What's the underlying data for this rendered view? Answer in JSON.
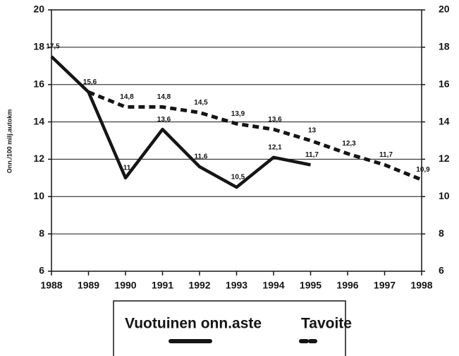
{
  "chart_data": {
    "type": "line",
    "y_label": "Onn./100 milj.autokm",
    "categories": [
      "1988",
      "1989",
      "1990",
      "1991",
      "1992",
      "1993",
      "1994",
      "1995",
      "1996",
      "1997",
      "1998"
    ],
    "series": [
      {
        "name": "Vuotuinen onn.aste",
        "color": "#151515",
        "style": "solid",
        "values": [
          17.5,
          15.6,
          11,
          13.6,
          11.6,
          10.5,
          12.1,
          11.7,
          null,
          null,
          null
        ],
        "value_labels": [
          "17,5",
          "15,6",
          "11",
          "13,6",
          "11,6",
          "10,5",
          "12,1",
          "11,7",
          null,
          null,
          null
        ]
      },
      {
        "name": "Tavoite",
        "color": "#151515",
        "style": "dashed",
        "values": [
          null,
          15.6,
          14.8,
          14.8,
          14.5,
          13.9,
          13.6,
          13,
          12.3,
          11.7,
          10.9
        ],
        "value_labels": [
          null,
          null,
          "14,8",
          "14,8",
          "14,5",
          "13,9",
          "13,6",
          "13",
          "12,3",
          "11,7",
          "10,9"
        ]
      }
    ],
    "ylim": [
      6,
      20
    ],
    "yticks": [
      6,
      8,
      10,
      12,
      14,
      16,
      18,
      20
    ],
    "y2lim": [
      6,
      20
    ],
    "y2ticks": [
      6,
      8,
      10,
      12,
      14,
      16,
      18,
      20
    ],
    "grid": true,
    "legend": "bottom"
  }
}
